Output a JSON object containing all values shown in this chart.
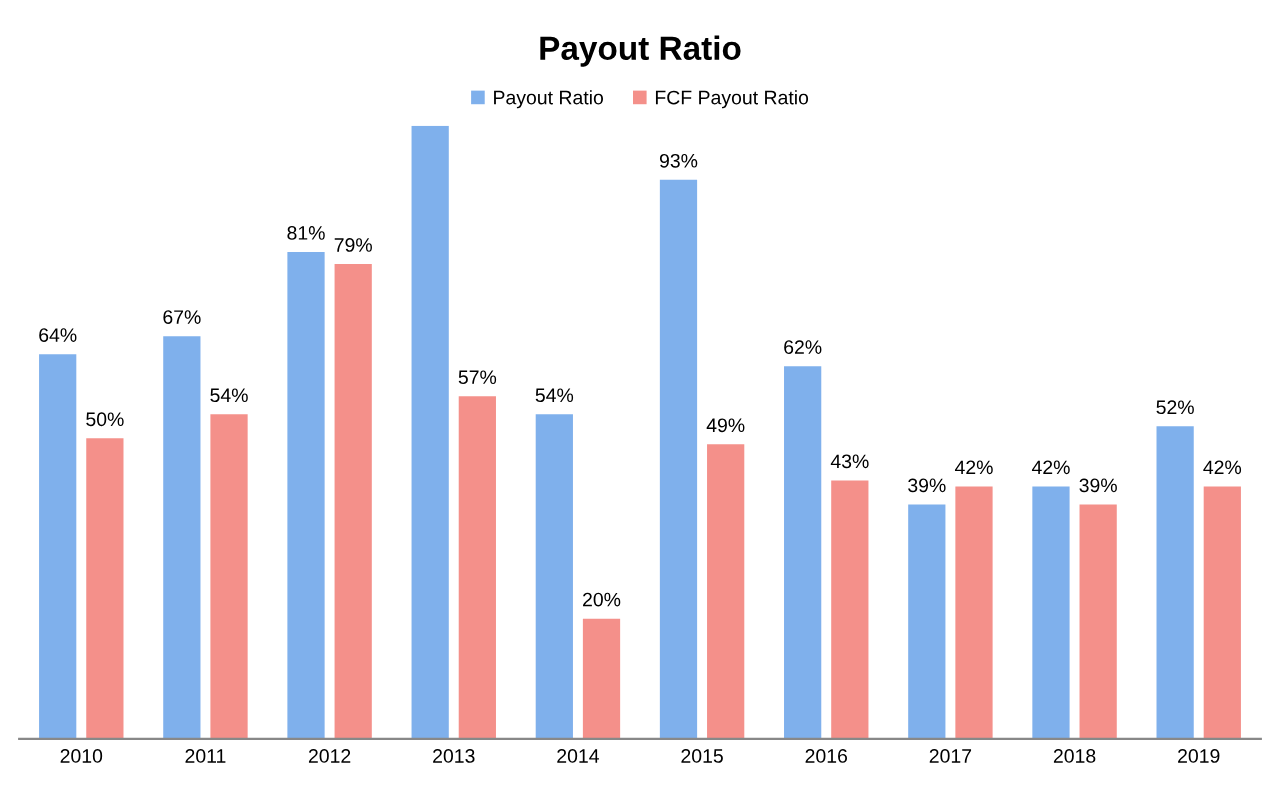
{
  "chart_data": {
    "type": "bar",
    "title": "Payout Ratio",
    "categories": [
      "2010",
      "2011",
      "2012",
      "2013",
      "2014",
      "2015",
      "2016",
      "2017",
      "2018",
      "2019"
    ],
    "series": [
      {
        "name": "Payout Ratio",
        "color": "#7fb0ec",
        "values": [
          64,
          67,
          81,
          102,
          54,
          93,
          62,
          39,
          42,
          52
        ],
        "value_labels": [
          "64%",
          "67%",
          "81%",
          null,
          "54%",
          "93%",
          "62%",
          "39%",
          "42%",
          "52%"
        ]
      },
      {
        "name": "FCF Payout Ratio",
        "color": "#f4908a",
        "values": [
          50,
          54,
          79,
          57,
          20,
          49,
          43,
          42,
          39,
          42
        ],
        "value_labels": [
          "50%",
          "54%",
          "79%",
          "57%",
          "20%",
          "49%",
          "43%",
          "42%",
          "39%",
          "42%"
        ]
      }
    ],
    "ylim": [
      0,
      102
    ],
    "tick_labels": "x",
    "grid": false,
    "legend": "top"
  }
}
